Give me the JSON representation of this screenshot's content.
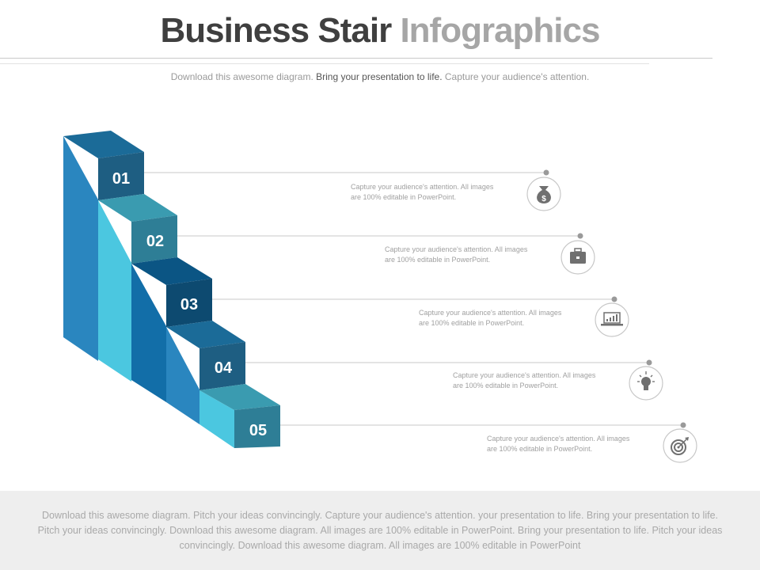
{
  "title": {
    "part1": "Business Stair",
    "part2": "Infographics"
  },
  "subtitle": {
    "part1": "Download this awesome diagram.",
    "part2": "Bring your presentation to life.",
    "part3": "Capture your audience's attention."
  },
  "steps": [
    {
      "number": "01",
      "line1": "Capture your audience's attention.  All images",
      "line2": "are 100% editable in PowerPoint.",
      "icon": "money-bag-icon"
    },
    {
      "number": "02",
      "line1": "Capture your audience's attention.  All images",
      "line2": "are 100% editable in PowerPoint.",
      "icon": "briefcase-icon"
    },
    {
      "number": "03",
      "line1": "Capture your audience's attention.  All images",
      "line2": "are 100% editable in PowerPoint.",
      "icon": "laptop-chart-icon"
    },
    {
      "number": "04",
      "line1": "Capture your audience's attention.  All images",
      "line2": "are 100% editable in PowerPoint.",
      "icon": "lightbulb-icon"
    },
    {
      "number": "05",
      "line1": "Capture your audience's attention.  All images",
      "line2": "are 100% editable in PowerPoint.",
      "icon": "target-icon"
    }
  ],
  "colors": {
    "col1": "#2a86bf",
    "col2": "#4bc7e0",
    "col3": "#126ea8",
    "col4": "#2a86bf",
    "col5": "#4bc7e0",
    "front1": "#1e5e82",
    "front2": "#2e7e96",
    "front3": "#0d4a70",
    "front4": "#1e5e82",
    "front5": "#2e7e96"
  },
  "footer": {
    "text": "Download this awesome diagram. Pitch your ideas convincingly. Capture your audience's attention. your presentation to life. Bring your presentation to life. Pitch your ideas convincingly. Download this awesome diagram. All images are 100% editable in PowerPoint. Bring your presentation to life. Pitch your ideas convincingly. Download this awesome diagram. All images are 100% editable in PowerPoint"
  }
}
